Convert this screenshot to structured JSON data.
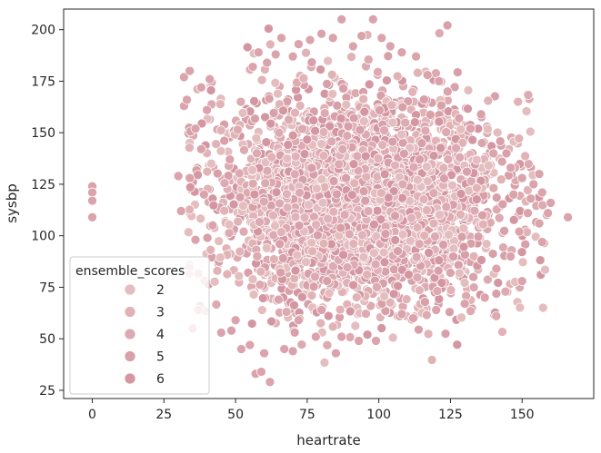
{
  "chart_data": {
    "type": "scatter",
    "xlabel": "heartrate",
    "ylabel": "sysbp",
    "xlim": [
      -10,
      175
    ],
    "ylim": [
      21,
      210
    ],
    "xticks": [
      0,
      25,
      50,
      75,
      100,
      125,
      150
    ],
    "yticks": [
      25,
      50,
      75,
      100,
      125,
      150,
      175,
      200
    ],
    "grid": false,
    "point_color": "#dba3ab",
    "point_edge_color": "#ffffff",
    "legend": {
      "title": "ensemble_scores",
      "placement": "lower-left",
      "entries": [
        {
          "label": "2",
          "color": "#e4bdbf"
        },
        {
          "label": "3",
          "color": "#e1b3b7"
        },
        {
          "label": "4",
          "color": "#dcaab0"
        },
        {
          "label": "5",
          "color": "#d8a0a8"
        },
        {
          "label": "6",
          "color": "#d497a2"
        }
      ]
    },
    "cluster": {
      "center": [
        92,
        117
      ],
      "spread": [
        24,
        25
      ],
      "x_range": [
        32,
        160
      ],
      "y_range": [
        28,
        206
      ]
    },
    "points": [
      [
        0,
        124
      ],
      [
        0,
        121
      ],
      [
        0,
        117
      ],
      [
        0,
        109
      ],
      [
        30,
        129
      ],
      [
        31,
        112
      ],
      [
        32,
        177
      ],
      [
        32,
        163
      ],
      [
        33,
        166
      ],
      [
        34,
        180
      ],
      [
        35,
        55
      ],
      [
        34,
        128
      ],
      [
        36,
        152
      ],
      [
        36,
        98
      ],
      [
        37,
        64
      ],
      [
        38,
        142
      ],
      [
        38,
        172
      ],
      [
        39,
        120
      ],
      [
        40,
        161
      ],
      [
        41,
        176
      ],
      [
        42,
        105
      ],
      [
        45,
        53
      ],
      [
        48,
        137
      ],
      [
        50,
        59
      ],
      [
        52,
        45
      ],
      [
        55,
        47
      ],
      [
        57,
        33
      ],
      [
        59,
        34
      ],
      [
        60,
        43
      ],
      [
        62,
        29
      ],
      [
        65,
        69
      ],
      [
        67,
        45
      ],
      [
        70,
        44
      ],
      [
        72,
        59
      ],
      [
        78,
        51
      ],
      [
        80,
        64
      ],
      [
        85,
        43
      ],
      [
        87,
        51
      ],
      [
        93,
        49
      ],
      [
        99,
        49
      ],
      [
        108,
        62
      ],
      [
        112,
        60
      ],
      [
        120,
        64
      ],
      [
        125,
        82
      ],
      [
        130,
        67
      ],
      [
        133,
        80
      ],
      [
        137,
        70
      ],
      [
        141,
        84
      ],
      [
        146,
        90
      ],
      [
        150,
        78
      ],
      [
        56,
        182
      ],
      [
        58,
        189
      ],
      [
        61,
        184
      ],
      [
        64,
        188
      ],
      [
        66,
        196
      ],
      [
        70,
        187
      ],
      [
        72,
        193
      ],
      [
        76,
        195
      ],
      [
        80,
        198
      ],
      [
        84,
        196
      ],
      [
        87,
        205
      ],
      [
        91,
        192
      ],
      [
        94,
        197
      ],
      [
        98,
        205
      ],
      [
        101,
        196
      ],
      [
        104,
        192
      ],
      [
        108,
        189
      ],
      [
        113,
        187
      ],
      [
        117,
        178
      ],
      [
        121,
        175
      ],
      [
        124,
        170
      ],
      [
        128,
        157
      ],
      [
        132,
        152
      ],
      [
        136,
        145
      ],
      [
        140,
        140
      ],
      [
        143,
        136
      ],
      [
        146,
        133
      ],
      [
        150,
        128
      ],
      [
        154,
        125
      ],
      [
        157,
        121
      ],
      [
        160,
        116
      ],
      [
        166,
        109
      ],
      [
        157,
        97
      ],
      [
        152,
        111
      ],
      [
        149,
        102
      ],
      [
        156,
        106
      ],
      [
        153,
        118
      ],
      [
        147,
        120
      ],
      [
        159,
        111
      ],
      [
        156,
        130
      ]
    ]
  }
}
